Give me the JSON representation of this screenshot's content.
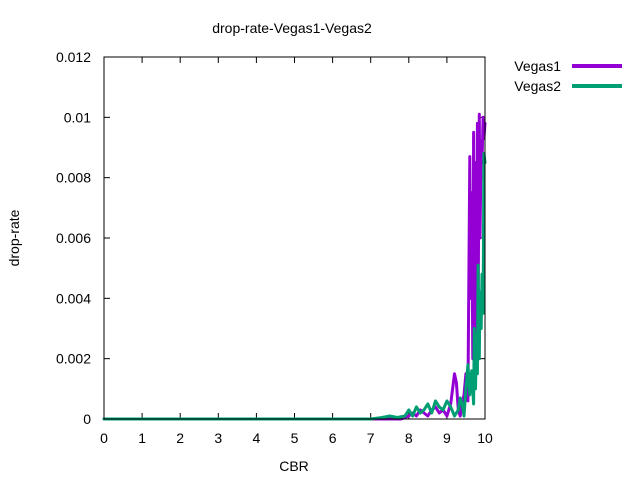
{
  "chart_data": {
    "type": "line",
    "title": "drop-rate-Vegas1-Vegas2",
    "xlabel": "CBR",
    "ylabel": "drop-rate",
    "xlim": [
      0,
      10
    ],
    "ylim": [
      0,
      0.012
    ],
    "x_ticks": [
      "0",
      "1",
      "2",
      "3",
      "4",
      "5",
      "6",
      "7",
      "8",
      "9",
      "10"
    ],
    "y_ticks": [
      "0",
      "0.002",
      "0.004",
      "0.006",
      "0.008",
      "0.01",
      "0.012"
    ],
    "grid": false,
    "legend_position": "top-right-outside",
    "series": [
      {
        "name": "Vegas1",
        "color": "#9400d3",
        "x": [
          0,
          1,
          2,
          3,
          4,
          5,
          6,
          7,
          7.5,
          7.8,
          8.0,
          8.1,
          8.2,
          8.3,
          8.4,
          8.5,
          8.6,
          8.7,
          8.8,
          8.9,
          9.0,
          9.1,
          9.2,
          9.25,
          9.3,
          9.35,
          9.4,
          9.45,
          9.5,
          9.55,
          9.6,
          9.62,
          9.65,
          9.68,
          9.7,
          9.72,
          9.75,
          9.78,
          9.8,
          9.82,
          9.85,
          9.87,
          9.9,
          9.92,
          9.95,
          9.97,
          10.0
        ],
        "y": [
          0,
          0,
          0,
          0,
          0,
          0,
          0,
          0,
          0,
          0,
          0.0001,
          0.0002,
          0.0001,
          0.0003,
          0.0002,
          0.0001,
          0.0003,
          0.0004,
          0.0002,
          0.0003,
          0.0001,
          0.0005,
          0.0015,
          0.0012,
          0.0003,
          0.0001,
          0.0005,
          0.0008,
          0.0015,
          0.0006,
          0.0087,
          0.004,
          0.0075,
          0.002,
          0.0095,
          0.003,
          0.0085,
          0.0022,
          0.0098,
          0.0035,
          0.0101,
          0.006,
          0.0092,
          0.0085,
          0.01,
          0.0093,
          0.0098
        ]
      },
      {
        "name": "Vegas2",
        "color": "#009e73",
        "x": [
          0,
          1,
          2,
          3,
          4,
          5,
          6,
          7,
          7.3,
          7.5,
          7.7,
          7.9,
          8.0,
          8.1,
          8.2,
          8.3,
          8.4,
          8.5,
          8.6,
          8.7,
          8.8,
          8.9,
          9.0,
          9.1,
          9.2,
          9.3,
          9.35,
          9.4,
          9.45,
          9.5,
          9.55,
          9.6,
          9.65,
          9.7,
          9.72,
          9.75,
          9.78,
          9.8,
          9.82,
          9.85,
          9.87,
          9.9,
          9.92,
          9.95,
          9.97,
          10.0
        ],
        "y": [
          0,
          0,
          0,
          0,
          0,
          0,
          0,
          0,
          5e-05,
          0.0001,
          5e-05,
          0.0001,
          0.0003,
          0.0001,
          0.0004,
          0.0002,
          0.0003,
          0.0005,
          0.0002,
          0.0006,
          0.0004,
          0.0003,
          0.0006,
          0.0004,
          0.0001,
          0.0003,
          0.0007,
          0.0005,
          0.0001,
          0.001,
          0.0018,
          0.0008,
          0.0016,
          0.0005,
          0.003,
          0.001,
          0.0028,
          0.0015,
          0.0051,
          0.002,
          0.0042,
          0.003,
          0.0048,
          0.0035,
          0.0088,
          0.0085
        ]
      }
    ]
  }
}
